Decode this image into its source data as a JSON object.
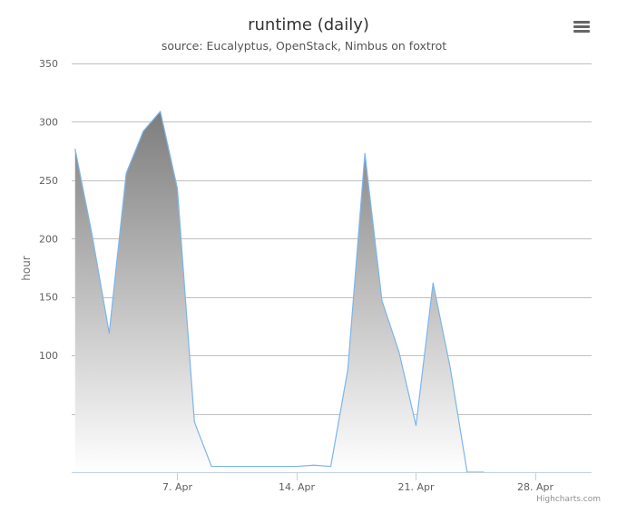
{
  "chart_data": {
    "type": "area",
    "title": "runtime (daily)",
    "subtitle": "source: Eucalyptus, OpenStack, Nimbus on foxtrot",
    "xlabel": "",
    "ylabel": "hour",
    "x_tick_labels": [
      "7. Apr",
      "14. Apr",
      "21. Apr",
      "28. Apr"
    ],
    "x_tick_days": [
      7,
      14,
      21,
      28
    ],
    "x_range_days": [
      0.8,
      31.3
    ],
    "y_tick_labels": [
      "100",
      "150",
      "200",
      "250",
      "300",
      "350"
    ],
    "y_ticks": [
      100,
      150,
      200,
      250,
      300,
      350
    ],
    "ylim": [
      0,
      350
    ],
    "grid": true,
    "legend": "none",
    "series": [
      {
        "x_days": [
          1,
          2,
          3,
          4,
          5,
          6,
          7,
          8,
          9,
          10,
          11,
          12,
          13,
          14,
          15,
          16,
          17,
          18,
          19,
          20,
          21,
          22,
          23,
          24,
          25
        ],
        "values": [
          277,
          203,
          119,
          256,
          292,
          309,
          243,
          43,
          5,
          5,
          5,
          5,
          5,
          5,
          6,
          5,
          88,
          273,
          147,
          103,
          40,
          162,
          90,
          0,
          0
        ]
      }
    ],
    "colors": {
      "line": "#7cb5ec",
      "fill_top": "#7d7d7d",
      "fill_bottom": "#ffffff",
      "grid": "#c0c0c0",
      "axis": "#c0d0e0"
    },
    "credits": "Highcharts.com",
    "menu_icon": "hamburger-menu-icon"
  }
}
